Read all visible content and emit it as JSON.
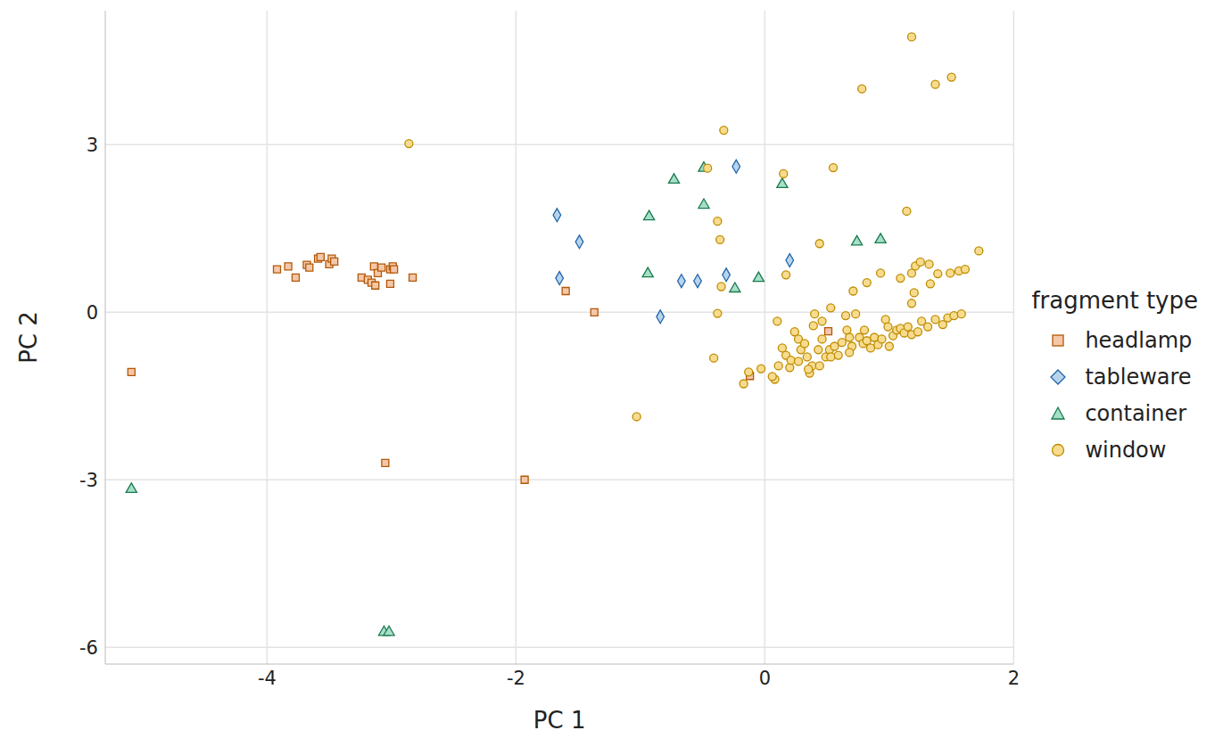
{
  "chart_data": {
    "type": "scatter",
    "x_label": "PC 1",
    "y_label": "PC 2",
    "legend_title": "fragment type",
    "legend": "right",
    "grid": true,
    "xlim": [
      -5.3,
      2
    ],
    "xticks": [
      -4,
      -2,
      0,
      2
    ],
    "ylim": [
      -6.3,
      5.4
    ],
    "yticks": [
      -6,
      -3,
      0,
      3
    ],
    "series": [
      {
        "name": "headlamp",
        "color": "#f4c7a8",
        "marker": "square",
        "x": [
          -3.92,
          -3.83,
          -3.77,
          -3.68,
          -3.66,
          -3.59,
          -3.57,
          -3.5,
          -3.48,
          -3.46,
          -3.24,
          -3.19,
          -3.16,
          -3.14,
          -3.13,
          -3.11,
          -3.08,
          -3.01,
          -3.01,
          -2.99,
          -2.98,
          -2.83,
          -1.6,
          -1.37,
          -5.09,
          -3.05,
          -1.93,
          0.51,
          -0.12
        ],
        "values": [
          0.77,
          0.82,
          0.62,
          0.85,
          0.8,
          0.96,
          0.99,
          0.86,
          0.96,
          0.91,
          0.62,
          0.58,
          0.53,
          0.82,
          0.48,
          0.7,
          0.8,
          0.77,
          0.51,
          0.82,
          0.77,
          0.62,
          0.38,
          0,
          -1.07,
          -2.7,
          -3.0,
          -0.34,
          -1.14
        ]
      },
      {
        "name": "tableware",
        "color": "#b8d4ec",
        "marker": "diamond",
        "x": [
          -1.67,
          -1.49,
          -1.65,
          -0.84,
          -0.67,
          -0.54,
          -0.31,
          -0.23,
          0.2
        ],
        "values": [
          1.74,
          1.26,
          0.61,
          -0.08,
          0.56,
          0.56,
          0.67,
          2.61,
          0.93
        ]
      },
      {
        "name": "container",
        "color": "#a6dfc8",
        "marker": "triangle",
        "x": [
          -5.09,
          -3.06,
          -3.02,
          -0.73,
          -0.93,
          -0.49,
          -0.49,
          -0.94,
          -0.24,
          -0.05,
          0.14,
          0.74,
          0.93
        ],
        "values": [
          -3.17,
          -5.73,
          -5.73,
          2.37,
          1.71,
          2.58,
          1.92,
          0.69,
          0.42,
          0.61,
          2.29,
          1.26,
          1.3
        ]
      },
      {
        "name": "window",
        "color": "#f7dc8f",
        "marker": "circle",
        "x": [
          -2.86,
          1.18,
          0.78,
          1.37,
          1.5,
          -0.33,
          -0.46,
          0.15,
          0.55,
          1.14,
          -0.38,
          -0.36,
          0.44,
          1.72,
          0.17,
          -0.35,
          -0.38,
          -0.41,
          -1.03,
          0.82,
          0.93,
          1.09,
          1.18,
          1.21,
          1.25,
          1.32,
          1.2,
          1.33,
          1.39,
          1.49,
          1.56,
          1.61,
          1.18,
          -0.17,
          -0.13,
          -0.03,
          0.08,
          0.11,
          0.14,
          0.17,
          0.2,
          0.21,
          0.24,
          0.27,
          0.29,
          0.32,
          0.34,
          0.36,
          0.38,
          0.4,
          0.39,
          0.43,
          0.46,
          0.49,
          0.52,
          0.53,
          0.56,
          0.59,
          0.62,
          0.65,
          0.66,
          0.68,
          0.7,
          0.71,
          0.73,
          0.76,
          0.79,
          0.82,
          0.85,
          0.88,
          0.91,
          0.94,
          0.97,
          1.0,
          1.03,
          1.06,
          1.09,
          1.12,
          1.15,
          1.18,
          1.23,
          1.26,
          1.31,
          1.37,
          1.43,
          1.47,
          1.52,
          1.58,
          0.1,
          0.27,
          0.06,
          0.46,
          0.53,
          0.35,
          0.99,
          0.68,
          0.8,
          0.44
        ],
        "values": [
          3.02,
          4.93,
          4.0,
          4.08,
          4.21,
          3.26,
          2.58,
          2.48,
          2.59,
          1.81,
          1.63,
          1.3,
          1.23,
          1.1,
          0.67,
          0.46,
          -0.02,
          -0.82,
          -1.87,
          0.53,
          0.7,
          0.61,
          0.7,
          0.83,
          0.9,
          0.86,
          0.35,
          0.51,
          0.69,
          0.7,
          0.74,
          0.77,
          0.16,
          -1.28,
          -1.07,
          -1.01,
          -1.2,
          -0.96,
          -0.64,
          -0.77,
          -0.99,
          -0.86,
          -0.35,
          -0.48,
          -0.67,
          -0.56,
          -0.8,
          -1.09,
          -0.96,
          -0.03,
          -0.24,
          -0.67,
          -0.48,
          -0.8,
          -0.67,
          0.08,
          -0.61,
          -0.77,
          -0.54,
          -0.06,
          -0.32,
          -0.45,
          -0.61,
          0.38,
          -0.03,
          -0.45,
          -0.56,
          -0.51,
          -0.64,
          -0.45,
          -0.58,
          -0.48,
          -0.13,
          -0.61,
          -0.42,
          -0.32,
          -0.29,
          -0.37,
          -0.26,
          -0.4,
          -0.35,
          -0.16,
          -0.26,
          -0.13,
          -0.22,
          -0.1,
          -0.06,
          -0.03,
          -0.16,
          -0.88,
          -1.15,
          -0.16,
          -0.8,
          -1.02,
          -0.26,
          -0.72,
          -0.32,
          -0.96
        ]
      }
    ]
  }
}
